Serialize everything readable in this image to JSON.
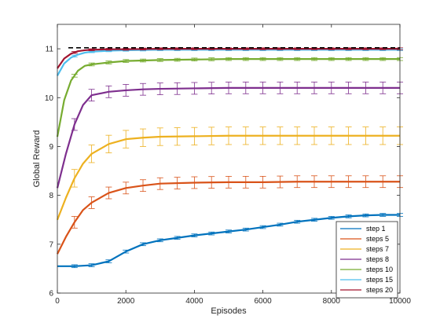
{
  "chart_data": {
    "type": "line",
    "title": "",
    "xlabel": "Episodes",
    "ylabel": "Global Reward",
    "xlim": [
      0,
      10000
    ],
    "ylim": [
      6,
      11.5
    ],
    "xticks": [
      0,
      2000,
      4000,
      6000,
      8000,
      10000
    ],
    "yticks": [
      6,
      7,
      8,
      9,
      10,
      11
    ],
    "grid": false,
    "legend": "bottom-right",
    "reference_line": {
      "y": 11.02,
      "style": "dashed",
      "color": "#000000"
    },
    "series": [
      {
        "name": "step 1",
        "color": "#0072BD",
        "x": [
          0,
          500,
          1000,
          1500,
          2000,
          2500,
          3000,
          3500,
          4000,
          4500,
          5000,
          5500,
          6000,
          6500,
          7000,
          7500,
          8000,
          8500,
          9000,
          9500,
          10000
        ],
        "y": [
          6.55,
          6.55,
          6.57,
          6.65,
          6.85,
          7.0,
          7.08,
          7.13,
          7.18,
          7.22,
          7.26,
          7.3,
          7.35,
          7.4,
          7.46,
          7.5,
          7.54,
          7.57,
          7.59,
          7.6,
          7.6
        ]
      },
      {
        "name": "steps 5",
        "color": "#D95319",
        "x": [
          0,
          250,
          500,
          750,
          1000,
          1500,
          2000,
          2500,
          3000,
          4000,
          5000,
          6000,
          7000,
          8000,
          9000,
          10000
        ],
        "y": [
          6.8,
          7.15,
          7.45,
          7.7,
          7.85,
          8.05,
          8.15,
          8.2,
          8.24,
          8.26,
          8.27,
          8.27,
          8.28,
          8.28,
          8.28,
          8.28
        ]
      },
      {
        "name": "steps 7",
        "color": "#EDB120",
        "x": [
          0,
          250,
          500,
          750,
          1000,
          1500,
          2000,
          2500,
          3000,
          4000,
          5000,
          6000,
          7000,
          8000,
          9000,
          10000
        ],
        "y": [
          7.5,
          7.95,
          8.35,
          8.65,
          8.85,
          9.05,
          9.15,
          9.18,
          9.2,
          9.21,
          9.22,
          9.22,
          9.22,
          9.22,
          9.22,
          9.22
        ]
      },
      {
        "name": "steps 8",
        "color": "#7E2F8E",
        "x": [
          0,
          250,
          500,
          750,
          1000,
          1500,
          2000,
          2500,
          3000,
          4000,
          5000,
          6000,
          7000,
          8000,
          9000,
          10000
        ],
        "y": [
          8.15,
          8.85,
          9.45,
          9.85,
          10.05,
          10.12,
          10.15,
          10.17,
          10.18,
          10.19,
          10.2,
          10.2,
          10.2,
          10.2,
          10.2,
          10.2
        ]
      },
      {
        "name": "steps 10",
        "color": "#77AC30",
        "x": [
          0,
          200,
          400,
          600,
          800,
          1000,
          1500,
          2000,
          2500,
          3000,
          4000,
          5000,
          6000,
          7000,
          8000,
          9000,
          10000
        ],
        "y": [
          9.2,
          9.95,
          10.35,
          10.55,
          10.65,
          10.68,
          10.72,
          10.75,
          10.76,
          10.77,
          10.78,
          10.79,
          10.79,
          10.79,
          10.79,
          10.79,
          10.79
        ]
      },
      {
        "name": "steps 15",
        "color": "#4DBEEE",
        "x": [
          0,
          200,
          400,
          600,
          800,
          1000,
          1500,
          2000,
          3000,
          4000,
          5000,
          6000,
          7000,
          8000,
          9000,
          10000
        ],
        "y": [
          10.45,
          10.7,
          10.82,
          10.88,
          10.92,
          10.94,
          10.96,
          10.97,
          10.98,
          10.98,
          10.98,
          10.98,
          10.98,
          10.98,
          10.98,
          10.98
        ]
      },
      {
        "name": "steps 20",
        "color": "#A2142F",
        "x": [
          0,
          200,
          400,
          600,
          800,
          1000,
          1500,
          2000,
          3000,
          4000,
          5000,
          6000,
          7000,
          8000,
          9000,
          10000
        ],
        "y": [
          10.6,
          10.8,
          10.9,
          10.95,
          10.97,
          10.98,
          10.99,
          10.99,
          11.0,
          11.0,
          11.0,
          11.0,
          11.0,
          11.0,
          11.0,
          11.0
        ]
      }
    ],
    "error_bars": {
      "x": [
        500,
        1000,
        1500,
        2000,
        2500,
        3000,
        3500,
        4000,
        4500,
        5000,
        5500,
        6000,
        6500,
        7000,
        7500,
        8000,
        8500,
        9000,
        9500,
        10000
      ],
      "half_width": {
        "step 1": 0.03,
        "steps 5": 0.12,
        "steps 7": 0.18,
        "steps 8": 0.12,
        "steps 10": 0.03,
        "steps 15": 0.02,
        "steps 20": 0.02
      }
    }
  }
}
